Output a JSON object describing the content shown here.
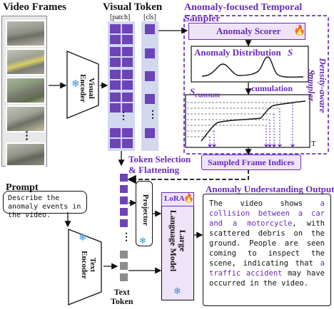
{
  "frames": {
    "label": "Video Frames",
    "dots": "⋮"
  },
  "visual_encoder": {
    "label": "Visual\nEncoder",
    "frozen_icon": "snowflake-icon"
  },
  "visual_token": {
    "label": "Visual Token",
    "patch_label": "[patch]",
    "cls_label": "[cls]",
    "dots": "⋮"
  },
  "sampler": {
    "title": "Anomaly-focused Temporal Sampler",
    "scorer_label": "Anomaly Scorer",
    "scorer_icon": "fire-icon",
    "distribution_label": "Anomaly Distribution",
    "distribution_symbol": "S",
    "t_label": "T",
    "cumsum_label": "S",
    "cumsum_sub": "cumsum",
    "cumulation_label": "cumulation",
    "side_label": "Density-aware Sampler",
    "sampled_label": "Sampled Frame Indices"
  },
  "token_selection": {
    "label": "Token Selection\n& Flattening"
  },
  "prompt": {
    "label": "Prompt",
    "text": "Describe the anomaly events in the video."
  },
  "text_encoder": {
    "label": "Text\nEncoder",
    "frozen_icon": "snowflake-icon"
  },
  "text_token": {
    "label": "Text\nToken",
    "dots": "⋮"
  },
  "projector": {
    "label": "Projector",
    "frozen_icon": "snowflake-icon"
  },
  "llm": {
    "lora_label": "LoRA",
    "lora_icon": "fire-icon",
    "label": "Large\nLanguage Model",
    "frozen_icon": "snowflake-icon"
  },
  "output": {
    "title": "Anomaly Understanding Output",
    "segments": [
      {
        "text": "The video shows ",
        "highlight": false
      },
      {
        "text": "a collision between a car and a motorcycle",
        "highlight": true
      },
      {
        "text": ", with scattered debris on the ground. People are seen coming to inspect the scene, indicating that ",
        "highlight": false
      },
      {
        "text": "a traffic accident",
        "highlight": true
      },
      {
        "text": " may have occurred in the video.",
        "highlight": false
      }
    ]
  },
  "colors": {
    "accent_purple": "#6a2bbd",
    "token_purple": "#6d43b8",
    "panel_border": "#7b4fc7",
    "token_column_bg": "#d2d9ee",
    "llm_fill": "#efe3f7",
    "flame": "#f06a14",
    "snow": "#3a93d8"
  }
}
